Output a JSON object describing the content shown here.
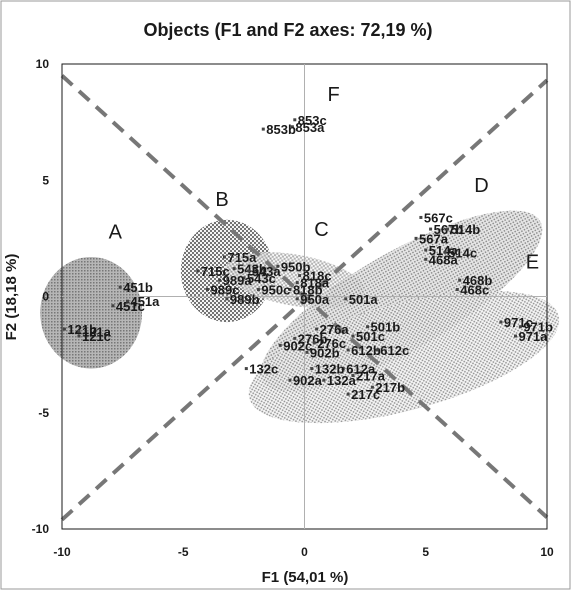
{
  "chart_data": {
    "type": "scatter",
    "title": "Objects (F1 and F2 axes: 72,19 %)",
    "xlabel": "F1 (54,01 %)",
    "ylabel": "F2 (18,18 %)",
    "xlim": [
      -10,
      10
    ],
    "ylim": [
      -10,
      10
    ],
    "xticks": [
      "-10",
      "-5",
      "0",
      "5",
      "10"
    ],
    "yticks": [
      "10",
      "5",
      "0",
      "-5",
      "-10"
    ],
    "xtick_values": [
      -10,
      -5,
      0,
      5,
      10
    ],
    "ytick_values": [
      10,
      5,
      0,
      -5,
      -10
    ],
    "grid": false,
    "points": [
      {
        "label": "121b",
        "x": -9.9,
        "y": -1.4
      },
      {
        "label": "121a",
        "x": -9.3,
        "y": -1.5
      },
      {
        "label": "121c",
        "x": -9.3,
        "y": -1.7
      },
      {
        "label": "451b",
        "x": -7.6,
        "y": 0.4
      },
      {
        "label": "451c",
        "x": -7.9,
        "y": -0.4
      },
      {
        "label": "451a",
        "x": -7.3,
        "y": -0.2
      },
      {
        "label": "715a",
        "x": -3.3,
        "y": 1.7
      },
      {
        "label": "715c",
        "x": -4.4,
        "y": 1.1
      },
      {
        "label": "543b",
        "x": -2.9,
        "y": 1.2
      },
      {
        "label": "543a",
        "x": -2.3,
        "y": 1.1
      },
      {
        "label": "543c",
        "x": -2.5,
        "y": 0.8
      },
      {
        "label": "989a",
        "x": -3.5,
        "y": 0.7
      },
      {
        "label": "989c",
        "x": -4.0,
        "y": 0.3
      },
      {
        "label": "989b",
        "x": -3.2,
        "y": -0.1
      },
      {
        "label": "950b",
        "x": -1.1,
        "y": 1.3
      },
      {
        "label": "818c",
        "x": -0.2,
        "y": 0.9
      },
      {
        "label": "818a",
        "x": -0.3,
        "y": 0.6
      },
      {
        "label": "818b",
        "x": -0.6,
        "y": 0.3
      },
      {
        "label": "950c",
        "x": -1.9,
        "y": 0.3
      },
      {
        "label": "950a",
        "x": -0.3,
        "y": -0.1
      },
      {
        "label": "501a",
        "x": 1.7,
        "y": -0.1
      },
      {
        "label": "853c",
        "x": -0.4,
        "y": 7.6
      },
      {
        "label": "853a",
        "x": -0.5,
        "y": 7.3
      },
      {
        "label": "853b",
        "x": -1.7,
        "y": 7.2
      },
      {
        "label": "567c",
        "x": 4.8,
        "y": 3.4
      },
      {
        "label": "567b",
        "x": 5.2,
        "y": 2.9
      },
      {
        "label": "514b",
        "x": 5.9,
        "y": 2.9
      },
      {
        "label": "567a",
        "x": 4.6,
        "y": 2.5
      },
      {
        "label": "514a",
        "x": 5.0,
        "y": 2.0
      },
      {
        "label": "514c",
        "x": 5.8,
        "y": 1.9
      },
      {
        "label": "468a",
        "x": 5.0,
        "y": 1.6
      },
      {
        "label": "468b",
        "x": 6.4,
        "y": 0.7
      },
      {
        "label": "468c",
        "x": 6.3,
        "y": 0.3
      },
      {
        "label": "971c",
        "x": 8.1,
        "y": -1.1
      },
      {
        "label": "971b",
        "x": 8.9,
        "y": -1.3
      },
      {
        "label": "971a",
        "x": 8.7,
        "y": -1.7
      },
      {
        "label": "501b",
        "x": 2.6,
        "y": -1.3
      },
      {
        "label": "501c",
        "x": 2.0,
        "y": -1.7
      },
      {
        "label": "276a",
        "x": 0.5,
        "y": -1.4
      },
      {
        "label": "276b",
        "x": -0.4,
        "y": -1.8
      },
      {
        "label": "276c",
        "x": 0.4,
        "y": -2.0
      },
      {
        "label": "612b",
        "x": 1.8,
        "y": -2.3
      },
      {
        "label": "612c",
        "x": 3.0,
        "y": -2.3
      },
      {
        "label": "902c",
        "x": -1.0,
        "y": -2.1
      },
      {
        "label": "902b",
        "x": 0.1,
        "y": -2.4
      },
      {
        "label": "612a",
        "x": 1.6,
        "y": -3.1
      },
      {
        "label": "132c",
        "x": -2.4,
        "y": -3.1
      },
      {
        "label": "132b",
        "x": 0.3,
        "y": -3.1
      },
      {
        "label": "217a",
        "x": 2.0,
        "y": -3.4
      },
      {
        "label": "902a",
        "x": -0.6,
        "y": -3.6
      },
      {
        "label": "132a",
        "x": 0.8,
        "y": -3.6
      },
      {
        "label": "217b",
        "x": 2.8,
        "y": -3.9
      },
      {
        "label": "217c",
        "x": 1.8,
        "y": -4.2
      }
    ],
    "groups": [
      {
        "label": "A",
        "pattern": "dots-fine",
        "cx": -8.8,
        "cy": -0.7,
        "rx": 2.1,
        "ry": 2.4,
        "angle": 0,
        "label_x": -7.8,
        "label_y": 2.5
      },
      {
        "label": "B",
        "pattern": "checker",
        "cx": -3.2,
        "cy": 1.1,
        "rx": 1.9,
        "ry": 2.2,
        "angle": 0,
        "label_x": -3.4,
        "label_y": 3.9
      },
      {
        "label": "C",
        "pattern": "checker-light",
        "cx": -0.4,
        "cy": 0.7,
        "rx": 2.9,
        "ry": 1.1,
        "angle": -10,
        "label_x": 0.7,
        "label_y": 2.6
      },
      {
        "label": "D",
        "pattern": "dots-medium",
        "cx": 4.0,
        "cy": -0.2,
        "rx": 6.6,
        "ry": 2.1,
        "angle": 30,
        "label_x": 7.3,
        "label_y": 4.5
      },
      {
        "label": "E",
        "pattern": "dots-coarse",
        "cx": 4.1,
        "cy": -2.6,
        "rx": 6.6,
        "ry": 2.3,
        "angle": 15,
        "label_x": 9.4,
        "label_y": 1.2
      },
      {
        "label": "F",
        "pattern": "none",
        "cx": 0,
        "cy": 0,
        "rx": 0,
        "ry": 0,
        "angle": 0,
        "label_x": 1.2,
        "label_y": 8.4
      }
    ],
    "reference_lines": [
      {
        "style": "dashed",
        "from": [
          -10,
          9.5
        ],
        "to": [
          10,
          -9.5
        ]
      },
      {
        "style": "dashed",
        "from": [
          -10,
          -9.6
        ],
        "to": [
          10,
          9.3
        ]
      }
    ]
  }
}
